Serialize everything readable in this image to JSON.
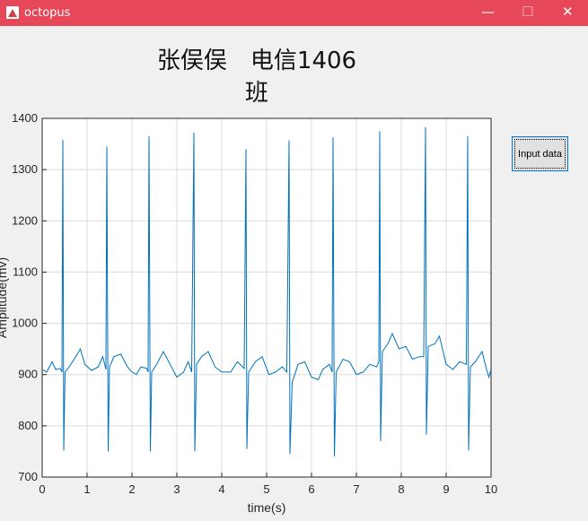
{
  "window": {
    "title": "octopus"
  },
  "button": {
    "label": "Input data"
  },
  "chart_data": {
    "type": "line",
    "title": "张俣俣　电信1406班",
    "x_label": "time(s)",
    "y_label": "Amplitude(mv)",
    "color": "#0072bd",
    "grid": true,
    "xlim": [
      0,
      10
    ],
    "ylim": [
      700,
      1400
    ],
    "xticks": [
      0,
      1,
      2,
      3,
      4,
      5,
      6,
      7,
      8,
      9,
      10
    ],
    "yticks": [
      700,
      800,
      900,
      1000,
      1100,
      1200,
      1300,
      1400
    ],
    "x": [
      0.0,
      0.1,
      0.22,
      0.3,
      0.4,
      0.44,
      0.46,
      0.48,
      0.51,
      0.6,
      0.75,
      0.85,
      0.95,
      1.1,
      1.25,
      1.35,
      1.42,
      1.44,
      1.47,
      1.5,
      1.6,
      1.75,
      1.9,
      2.0,
      2.1,
      2.2,
      2.33,
      2.36,
      2.38,
      2.41,
      2.44,
      2.55,
      2.7,
      2.85,
      3.0,
      3.15,
      3.25,
      3.33,
      3.38,
      3.4,
      3.44,
      3.55,
      3.7,
      3.85,
      4.0,
      4.2,
      4.35,
      4.5,
      4.54,
      4.56,
      4.6,
      4.75,
      4.9,
      5.05,
      5.2,
      5.35,
      5.45,
      5.5,
      5.52,
      5.57,
      5.7,
      5.85,
      6.0,
      6.15,
      6.25,
      6.4,
      6.46,
      6.48,
      6.51,
      6.55,
      6.7,
      6.85,
      7.0,
      7.15,
      7.3,
      7.45,
      7.5,
      7.52,
      7.54,
      7.58,
      7.7,
      7.8,
      7.95,
      8.1,
      8.25,
      8.4,
      8.5,
      8.54,
      8.56,
      8.6,
      8.75,
      8.85,
      9.0,
      9.15,
      9.3,
      9.45,
      9.48,
      9.5,
      9.54,
      9.65,
      9.8,
      9.9,
      9.95,
      10.0
    ],
    "values": [
      910,
      905,
      925,
      910,
      912,
      905,
      1358,
      752,
      905,
      915,
      935,
      950,
      920,
      908,
      915,
      935,
      910,
      1345,
      750,
      915,
      935,
      940,
      915,
      905,
      900,
      915,
      912,
      905,
      1365,
      750,
      905,
      920,
      945,
      920,
      895,
      905,
      925,
      905,
      1372,
      750,
      920,
      935,
      945,
      915,
      905,
      905,
      925,
      912,
      1340,
      755,
      905,
      925,
      935,
      900,
      905,
      915,
      905,
      1357,
      745,
      885,
      920,
      925,
      895,
      890,
      910,
      920,
      905,
      1363,
      740,
      905,
      930,
      925,
      900,
      905,
      920,
      915,
      925,
      1375,
      770,
      945,
      960,
      980,
      950,
      955,
      930,
      935,
      935,
      1383,
      783,
      955,
      960,
      975,
      920,
      910,
      925,
      920,
      1365,
      752,
      915,
      925,
      945,
      910,
      895,
      910
    ]
  }
}
